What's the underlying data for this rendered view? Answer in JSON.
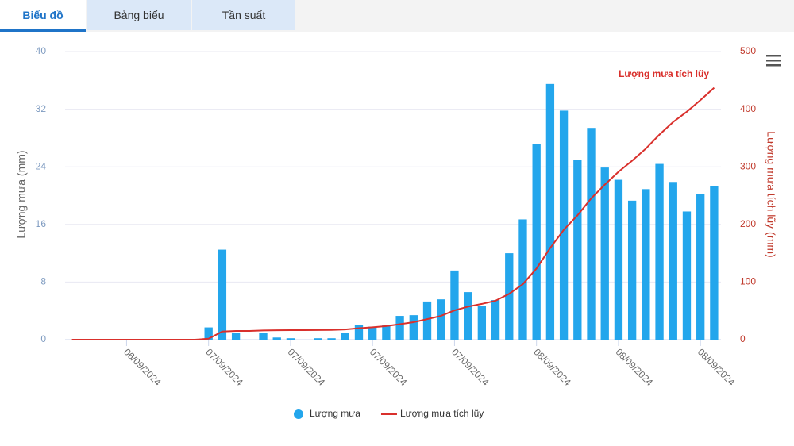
{
  "tabs": [
    "Biểu đồ",
    "Bảng biểu",
    "Tần suất"
  ],
  "chart_data": {
    "type": "bar",
    "annotation": "Lượng mưa tích lũy",
    "y_label": "Lượng mưa (mm)",
    "y2_label": "Lượng mưa tích lũy (mm)",
    "categories": [
      null,
      null,
      null,
      null,
      "06/09/2024",
      null,
      null,
      null,
      null,
      null,
      "07/09/2024",
      null,
      null,
      null,
      null,
      null,
      "07/09/2024",
      null,
      null,
      null,
      null,
      null,
      "07/09/2024",
      null,
      null,
      null,
      null,
      null,
      "07/09/2024",
      null,
      null,
      null,
      null,
      null,
      "08/09/2024",
      null,
      null,
      null,
      null,
      null,
      "08/09/2024",
      null,
      null,
      null,
      null,
      null,
      "08/09/2024",
      null
    ],
    "series": [
      {
        "name": "Lượng mưa",
        "type": "bar",
        "color": "#23a6ec",
        "values": [
          0,
          0,
          0,
          0,
          0,
          0,
          0,
          0,
          0,
          0,
          1.7,
          12.5,
          0.9,
          0,
          0.9,
          0.3,
          0.2,
          0,
          0.2,
          0.2,
          0.9,
          2.0,
          1.8,
          2.0,
          3.3,
          3.4,
          5.3,
          5.6,
          9.6,
          6.6,
          4.7,
          5.5,
          12.0,
          16.7,
          27.2,
          35.5,
          31.8,
          25.0,
          29.4,
          23.9,
          22.2,
          19.3,
          20.9,
          24.4,
          21.9,
          17.8,
          20.2,
          21.3
        ]
      },
      {
        "name": "Lượng mưa tích lũy",
        "type": "line",
        "axis": "y2",
        "color": "#d9302c",
        "values": [
          0,
          0,
          0,
          0,
          0,
          0,
          0,
          0,
          0,
          0,
          1.7,
          14.2,
          15.1,
          15.1,
          16.0,
          16.3,
          16.5,
          16.5,
          16.7,
          16.9,
          17.8,
          19.8,
          21.6,
          23.6,
          26.9,
          30.3,
          35.6,
          41.2,
          50.8,
          57.4,
          62.1,
          67.6,
          79.6,
          96.3,
          123.5,
          159.0,
          190.8,
          215.8,
          245.2,
          269.1,
          291.3,
          310.6,
          331.5,
          355.9,
          377.8,
          395.6,
          415.8,
          437.1
        ]
      }
    ],
    "ylim": [
      0,
      40
    ],
    "yticks": [
      0,
      8,
      16,
      24,
      32,
      40
    ],
    "y2lim": [
      0,
      500
    ],
    "y2ticks": [
      0,
      100,
      200,
      300,
      400,
      500
    ],
    "grid": true,
    "legend": "bottom"
  }
}
